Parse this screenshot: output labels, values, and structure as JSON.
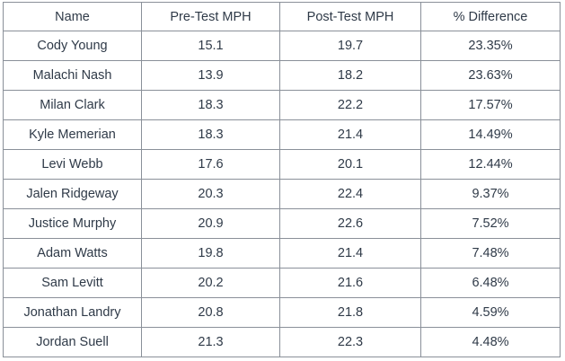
{
  "table": {
    "headers": [
      "Name",
      "Pre-Test MPH",
      "Post-Test MPH",
      "% Difference"
    ],
    "rows": [
      [
        "Cody Young",
        "15.1",
        "19.7",
        "23.35%"
      ],
      [
        "Malachi Nash",
        "13.9",
        "18.2",
        "23.63%"
      ],
      [
        "Milan Clark",
        "18.3",
        "22.2",
        "17.57%"
      ],
      [
        "Kyle Memerian",
        "18.3",
        "21.4",
        "14.49%"
      ],
      [
        "Levi Webb",
        "17.6",
        "20.1",
        "12.44%"
      ],
      [
        "Jalen Ridgeway",
        "20.3",
        "22.4",
        "9.37%"
      ],
      [
        "Justice Murphy",
        "20.9",
        "22.6",
        "7.52%"
      ],
      [
        "Adam Watts",
        "19.8",
        "21.4",
        "7.48%"
      ],
      [
        "Sam Levitt",
        "20.2",
        "21.6",
        "6.48%"
      ],
      [
        "Jonathan Landry",
        "20.8",
        "21.8",
        "4.59%"
      ],
      [
        "Jordan Suell",
        "21.3",
        "22.3",
        "4.48%"
      ]
    ]
  }
}
